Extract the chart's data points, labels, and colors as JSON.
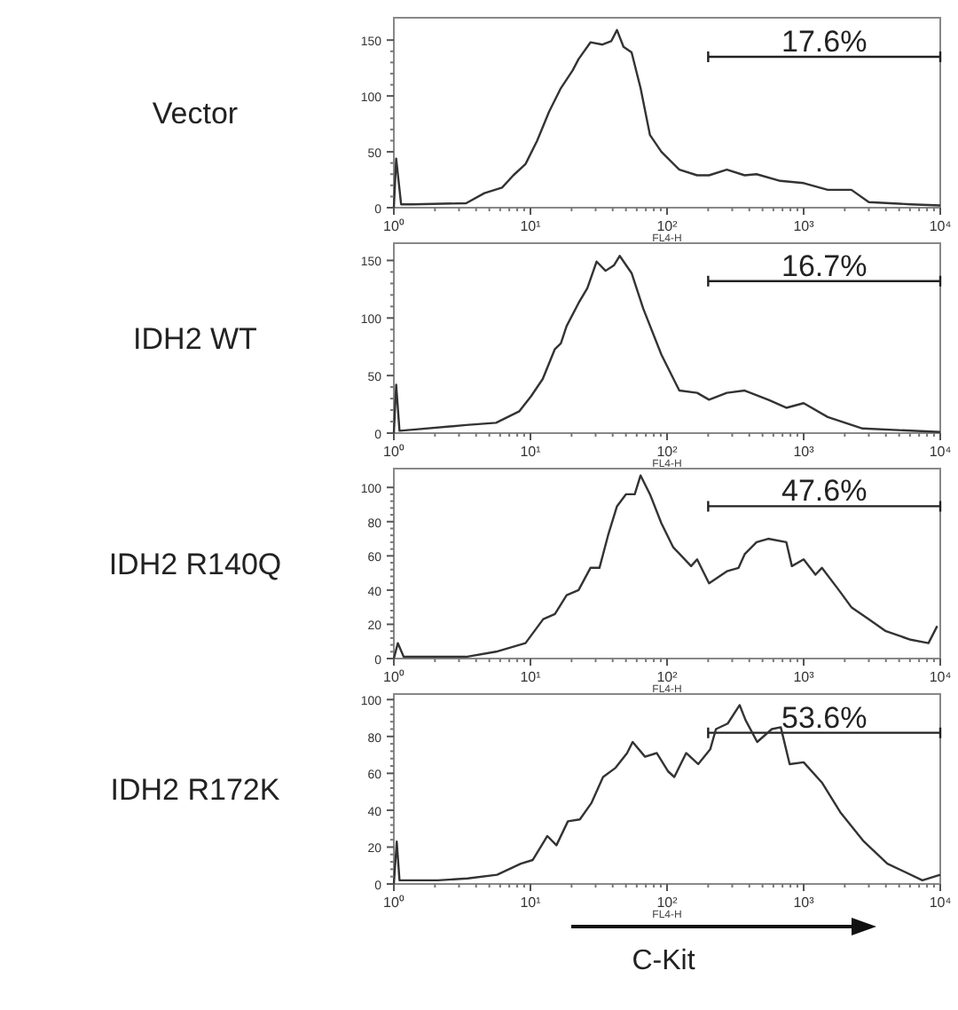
{
  "chart_data": [
    {
      "type": "line",
      "title": "Vector",
      "xlabel": "FL4-H",
      "log": "x",
      "xlim": [
        1,
        10000
      ],
      "xticks": [
        {
          "value": 1,
          "label": "10⁰"
        },
        {
          "value": 10,
          "label": "10¹"
        },
        {
          "value": 100,
          "label": "10²"
        },
        {
          "value": 1000,
          "label": "10³"
        },
        {
          "value": 10000,
          "label": "10⁴"
        }
      ],
      "ylim": [
        0,
        170
      ],
      "yticks": [
        0,
        50,
        100,
        150
      ],
      "annotations": [
        "17.6%"
      ],
      "series": [
        {
          "type": "line",
          "color": "#222222",
          "x": [
            200,
            10000
          ],
          "values": [
            135,
            135
          ]
        },
        {
          "color": "#333333",
          "x": [
            1,
            1.04,
            1.13,
            1.38,
            3.38,
            4.6,
            6.2,
            7.5,
            9.2,
            11.2,
            13.7,
            16.7,
            20.4,
            22.5,
            27.5,
            33.7,
            39,
            43,
            48,
            55,
            64,
            75,
            91,
            123,
            166,
            203,
            274,
            370,
            452,
            674,
            1000,
            1500,
            2235,
            3000,
            6070,
            10000
          ],
          "values": [
            0,
            44,
            3,
            3,
            4,
            13,
            18,
            29,
            39,
            60,
            86,
            107,
            123,
            133,
            148,
            146,
            149,
            159,
            144,
            139,
            107,
            65,
            50,
            34,
            29,
            29,
            34,
            29,
            30,
            24,
            22,
            16,
            16,
            5,
            3,
            2
          ]
        }
      ]
    },
    {
      "type": "line",
      "title": "IDH2 WT",
      "xlabel": "FL4-H",
      "log": "x",
      "xlim": [
        1,
        10000
      ],
      "xticks": [
        {
          "value": 1,
          "label": "10⁰"
        },
        {
          "value": 10,
          "label": "10¹"
        },
        {
          "value": 100,
          "label": "10²"
        },
        {
          "value": 1000,
          "label": "10³"
        },
        {
          "value": 10000,
          "label": "10⁴"
        }
      ],
      "ylim": [
        0,
        165
      ],
      "yticks": [
        0,
        50,
        100,
        150
      ],
      "annotations": [
        "16.7%"
      ],
      "series": [
        {
          "type": "line",
          "color": "#222222",
          "x": [
            200,
            10000
          ],
          "values": [
            132,
            132
          ]
        },
        {
          "color": "#333333",
          "x": [
            1,
            1.04,
            1.1,
            1.38,
            3.38,
            5.6,
            8.3,
            10.1,
            12.3,
            15.1,
            16.7,
            18.4,
            22.5,
            26.1,
            30.5,
            35.5,
            41,
            45,
            55,
            67,
            91,
            123,
            166,
            203,
            274,
            370,
            550,
            747,
            1000,
            1500,
            2700,
            10000
          ],
          "values": [
            0,
            42,
            2,
            3,
            7,
            9,
            19,
            32,
            47,
            73,
            78,
            93,
            113,
            126,
            149,
            141,
            146,
            154,
            139,
            108,
            68,
            37,
            35,
            29,
            35,
            37,
            29,
            22,
            26,
            14,
            4,
            1
          ]
        }
      ]
    },
    {
      "type": "line",
      "title": "IDH2 R140Q",
      "xlabel": "FL4-H",
      "log": "x",
      "xlim": [
        1,
        10000
      ],
      "xticks": [
        {
          "value": 1,
          "label": "10⁰"
        },
        {
          "value": 10,
          "label": "10¹"
        },
        {
          "value": 100,
          "label": "10²"
        },
        {
          "value": 1000,
          "label": "10³"
        },
        {
          "value": 10000,
          "label": "10⁴"
        }
      ],
      "ylim": [
        0,
        111
      ],
      "yticks": [
        0,
        20,
        40,
        60,
        80,
        100
      ],
      "annotations": [
        "47.6%"
      ],
      "series": [
        {
          "type": "line",
          "color": "#222222",
          "x": [
            200,
            10000
          ],
          "values": [
            89,
            89
          ]
        },
        {
          "color": "#333333",
          "x": [
            1,
            1.07,
            1.18,
            3.38,
            5.6,
            9.2,
            12.4,
            15.1,
            18.4,
            22.5,
            27.5,
            32,
            37,
            43,
            50,
            58,
            64,
            75,
            91,
            111,
            150,
            166,
            203,
            274,
            334,
            370,
            452,
            550,
            747,
            820,
            1000,
            1220,
            1360,
            1810,
            2235,
            3000,
            4000,
            6070,
            8200,
            9500
          ],
          "values": [
            0,
            9,
            1,
            1,
            4,
            9,
            23,
            26,
            37,
            40,
            53,
            53,
            72,
            89,
            96,
            96,
            107,
            96,
            79,
            65,
            54,
            58,
            44,
            51,
            53,
            61,
            68,
            70,
            68,
            54,
            58,
            49,
            53,
            40,
            30,
            23,
            16,
            11,
            9,
            19
          ]
        }
      ]
    },
    {
      "type": "line",
      "title": "IDH2 R172K",
      "xlabel": "FL4-H",
      "log": "x",
      "xlim": [
        1,
        10000
      ],
      "xticks": [
        {
          "value": 1,
          "label": "10⁰"
        },
        {
          "value": 10,
          "label": "10¹"
        },
        {
          "value": 100,
          "label": "10²"
        },
        {
          "value": 1000,
          "label": "10³"
        },
        {
          "value": 10000,
          "label": "10⁴"
        }
      ],
      "ylim": [
        0,
        103
      ],
      "yticks": [
        0,
        20,
        40,
        60,
        80,
        100
      ],
      "annotations": [
        "53.6%",
        "C-Kit"
      ],
      "series": [
        {
          "type": "line",
          "color": "#222222",
          "x": [
            200,
            10000
          ],
          "values": [
            82,
            82
          ]
        },
        {
          "color": "#333333",
          "x": [
            1,
            1.05,
            1.1,
            2.1,
            3.47,
            5.7,
            8.5,
            10.4,
            13.3,
            15.5,
            18.8,
            23,
            28,
            34,
            42,
            51,
            56,
            69,
            84,
            102,
            113,
            138,
            169,
            207,
            228,
            278,
            340,
            375,
            457,
            585,
            680,
            790,
            1000,
            1360,
            1850,
            2760,
            4100,
            7400,
            10000
          ],
          "values": [
            0,
            23,
            2,
            2,
            3,
            5,
            11,
            13,
            26,
            21,
            34,
            35,
            44,
            58,
            63,
            71,
            77,
            69,
            71,
            61,
            58,
            71,
            65,
            73,
            84,
            87,
            97,
            89,
            77,
            84,
            85,
            65,
            66,
            55,
            39,
            23,
            11,
            2,
            5
          ]
        }
      ]
    }
  ]
}
